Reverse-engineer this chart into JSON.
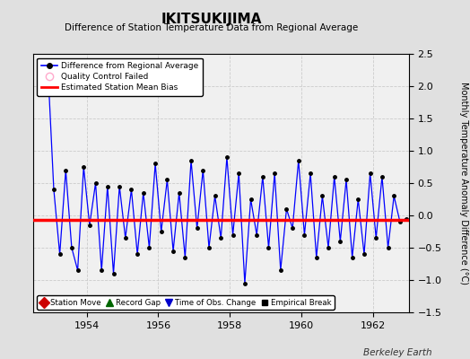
{
  "title": "IKITSUKIJIMA",
  "subtitle": "Difference of Station Temperature Data from Regional Average",
  "ylabel": "Monthly Temperature Anomaly Difference (°C)",
  "outer_bg_color": "#e0e0e0",
  "plot_bg_color": "#f0f0f0",
  "bias_value": -0.07,
  "ylim": [
    -1.5,
    2.5
  ],
  "xlim": [
    1952.5,
    1963.0
  ],
  "xticks": [
    1954,
    1956,
    1958,
    1960,
    1962
  ],
  "yticks": [
    -1.5,
    -1.0,
    -0.5,
    0.0,
    0.5,
    1.0,
    1.5,
    2.0,
    2.5
  ],
  "quality_control_x": [
    1952.917
  ],
  "quality_control_y": [
    2.3
  ],
  "time_series_x": [
    1952.917,
    1953.083,
    1953.25,
    1953.417,
    1953.583,
    1953.75,
    1953.917,
    1954.083,
    1954.25,
    1954.417,
    1954.583,
    1954.75,
    1954.917,
    1955.083,
    1955.25,
    1955.417,
    1955.583,
    1955.75,
    1955.917,
    1956.083,
    1956.25,
    1956.417,
    1956.583,
    1956.75,
    1956.917,
    1957.083,
    1957.25,
    1957.417,
    1957.583,
    1957.75,
    1957.917,
    1958.083,
    1958.25,
    1958.417,
    1958.583,
    1958.75,
    1958.917,
    1959.083,
    1959.25,
    1959.417,
    1959.583,
    1959.75,
    1959.917,
    1960.083,
    1960.25,
    1960.417,
    1960.583,
    1960.75,
    1960.917,
    1961.083,
    1961.25,
    1961.417,
    1961.583,
    1961.75,
    1961.917,
    1962.083,
    1962.25,
    1962.417,
    1962.583,
    1962.75,
    1962.917
  ],
  "time_series_y": [
    2.3,
    0.4,
    -0.6,
    0.7,
    -0.5,
    -0.85,
    0.75,
    -0.15,
    0.5,
    -0.85,
    0.45,
    -0.9,
    0.45,
    -0.35,
    0.4,
    -0.6,
    0.35,
    -0.5,
    0.8,
    -0.25,
    0.55,
    -0.55,
    0.35,
    -0.65,
    0.85,
    -0.2,
    0.7,
    -0.5,
    0.3,
    -0.35,
    0.9,
    -0.3,
    0.65,
    -1.05,
    0.25,
    -0.3,
    0.6,
    -0.5,
    0.65,
    -0.85,
    0.1,
    -0.2,
    0.85,
    -0.3,
    0.65,
    -0.65,
    0.3,
    -0.5,
    0.6,
    -0.4,
    0.55,
    -0.65,
    0.25,
    -0.6,
    0.65,
    -0.35,
    0.6,
    -0.5,
    0.3,
    -0.1,
    -0.05
  ],
  "line_color": "#0000ff",
  "marker_color": "#000000",
  "bias_color": "#ff0000",
  "qc_marker_color": "#ffaacc",
  "watermark": "Berkeley Earth"
}
